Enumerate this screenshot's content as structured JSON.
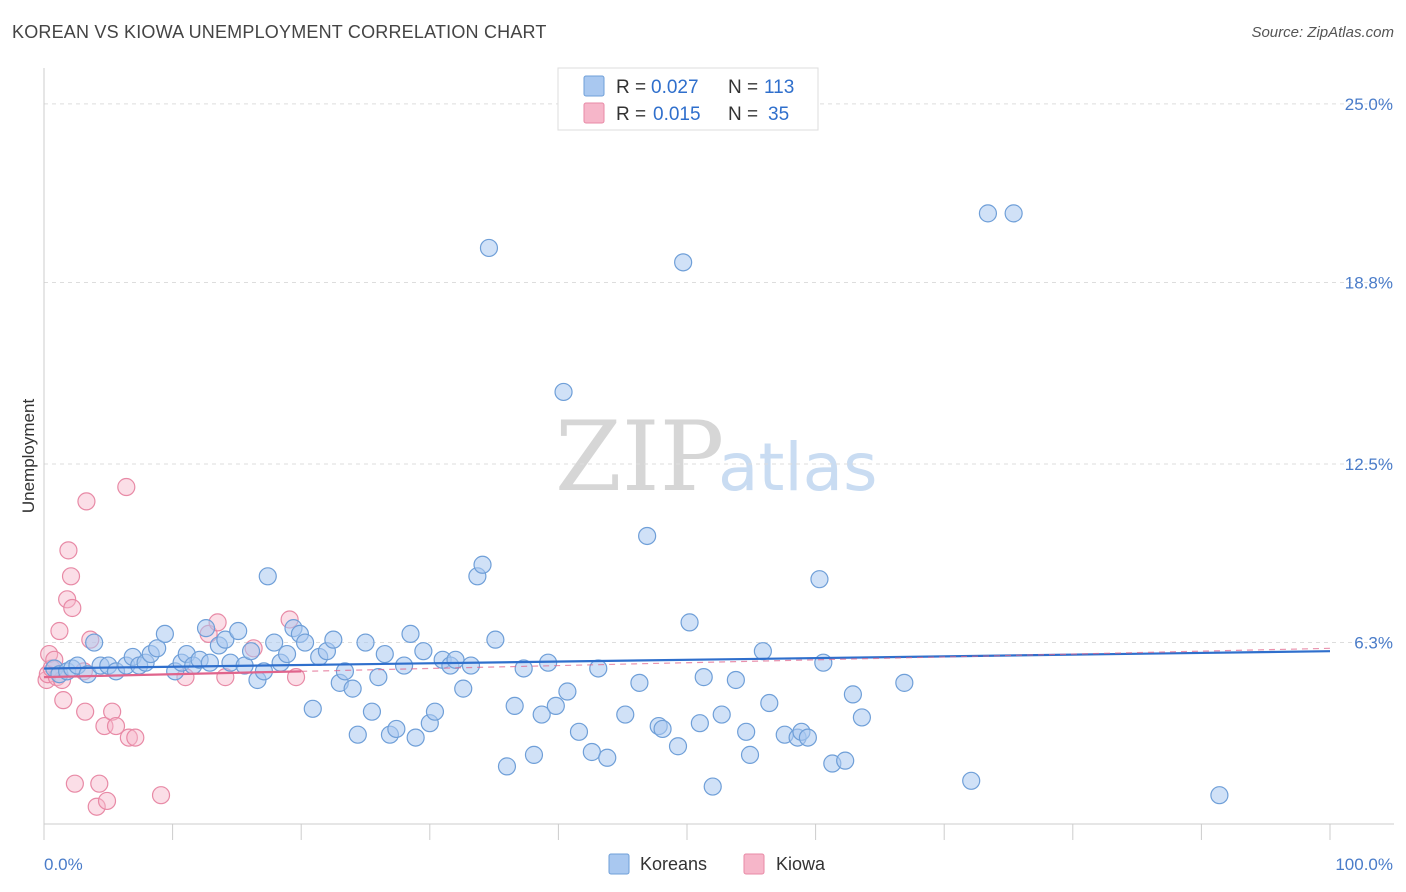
{
  "header": {
    "title": "KOREAN VS KIOWA UNEMPLOYMENT CORRELATION CHART",
    "source": "Source: ZipAtlas.com"
  },
  "watermark": {
    "zip": "ZIP",
    "atlas": "atlas"
  },
  "legend_top": [
    {
      "r_label": "R =",
      "r_value": "0.027",
      "n_label": "N =",
      "n_value": "113",
      "color": "#a9c8f0"
    },
    {
      "r_label": "R =",
      "r_value": "0.015",
      "n_label": "N =",
      "n_value": "35",
      "color": "#f6b6c9"
    }
  ],
  "legend_bottom": [
    {
      "label": "Koreans",
      "color": "#a9c8f0"
    },
    {
      "label": "Kiowa",
      "color": "#f6b6c9"
    }
  ],
  "colors": {
    "koreans_fill": "#a9c8f0",
    "koreans_stroke": "#6f9fd8",
    "koreans_line": "#2f6fcc",
    "kiowa_fill": "#f6b6c9",
    "kiowa_stroke": "#e88aa6",
    "kiowa_line": "#e0648c",
    "tick_text": "#4a7cc9",
    "grid": "#dddddd"
  },
  "chart_data": {
    "type": "scatter",
    "title": "KOREAN VS KIOWA UNEMPLOYMENT CORRELATION CHART",
    "xlabel": "",
    "ylabel": "Unemployment",
    "xlim": [
      0,
      100
    ],
    "ylim": [
      0,
      25.9
    ],
    "x_tick_labels": [
      {
        "value": 0,
        "label": "0.0%"
      },
      {
        "value": 100,
        "label": "100.0%"
      }
    ],
    "y_tick_labels": [
      {
        "value": 6.3,
        "label": "6.3%"
      },
      {
        "value": 12.5,
        "label": "12.5%"
      },
      {
        "value": 18.8,
        "label": "18.8%"
      },
      {
        "value": 25.0,
        "label": "25.0%"
      }
    ],
    "grid": true,
    "legend_placement": "top-center",
    "series": [
      {
        "name": "Koreans",
        "r": 0.027,
        "n": 113,
        "trend": {
          "x": [
            0,
            100
          ],
          "y": [
            5.4,
            6.0
          ]
        },
        "points": [
          [
            0.8,
            5.4
          ],
          [
            1.2,
            5.2
          ],
          [
            1.8,
            5.3
          ],
          [
            2.2,
            5.4
          ],
          [
            2.6,
            5.5
          ],
          [
            3.4,
            5.2
          ],
          [
            3.9,
            6.3
          ],
          [
            4.4,
            5.5
          ],
          [
            5.0,
            5.5
          ],
          [
            5.6,
            5.3
          ],
          [
            6.4,
            5.5
          ],
          [
            6.9,
            5.8
          ],
          [
            7.4,
            5.5
          ],
          [
            7.9,
            5.6
          ],
          [
            8.3,
            5.9
          ],
          [
            8.8,
            6.1
          ],
          [
            9.4,
            6.6
          ],
          [
            10.2,
            5.3
          ],
          [
            10.7,
            5.6
          ],
          [
            11.1,
            5.9
          ],
          [
            11.6,
            5.5
          ],
          [
            12.1,
            5.7
          ],
          [
            12.6,
            6.8
          ],
          [
            12.9,
            5.6
          ],
          [
            13.6,
            6.2
          ],
          [
            14.1,
            6.4
          ],
          [
            14.5,
            5.6
          ],
          [
            15.1,
            6.7
          ],
          [
            15.6,
            5.5
          ],
          [
            16.1,
            6.0
          ],
          [
            16.6,
            5.0
          ],
          [
            17.1,
            5.3
          ],
          [
            17.4,
            8.6
          ],
          [
            17.9,
            6.3
          ],
          [
            18.4,
            5.6
          ],
          [
            18.9,
            5.9
          ],
          [
            19.4,
            6.8
          ],
          [
            19.9,
            6.6
          ],
          [
            20.3,
            6.3
          ],
          [
            20.9,
            4.0
          ],
          [
            21.4,
            5.8
          ],
          [
            22.0,
            6.0
          ],
          [
            22.5,
            6.4
          ],
          [
            23.0,
            4.9
          ],
          [
            23.4,
            5.3
          ],
          [
            24.0,
            4.7
          ],
          [
            24.4,
            3.1
          ],
          [
            25.0,
            6.3
          ],
          [
            25.5,
            3.9
          ],
          [
            26.0,
            5.1
          ],
          [
            26.5,
            5.9
          ],
          [
            26.9,
            3.1
          ],
          [
            27.4,
            3.3
          ],
          [
            28.0,
            5.5
          ],
          [
            28.5,
            6.6
          ],
          [
            28.9,
            3.0
          ],
          [
            29.5,
            6.0
          ],
          [
            30.0,
            3.5
          ],
          [
            30.4,
            3.9
          ],
          [
            31.0,
            5.7
          ],
          [
            31.6,
            5.5
          ],
          [
            32.0,
            5.7
          ],
          [
            32.6,
            4.7
          ],
          [
            33.2,
            5.5
          ],
          [
            33.7,
            8.6
          ],
          [
            34.1,
            9.0
          ],
          [
            34.6,
            20.0
          ],
          [
            35.1,
            6.4
          ],
          [
            36.0,
            2.0
          ],
          [
            36.6,
            4.1
          ],
          [
            37.3,
            5.4
          ],
          [
            38.1,
            2.4
          ],
          [
            38.7,
            3.8
          ],
          [
            39.2,
            5.6
          ],
          [
            39.8,
            4.1
          ],
          [
            40.4,
            15.0
          ],
          [
            40.7,
            4.6
          ],
          [
            41.6,
            3.2
          ],
          [
            42.6,
            2.5
          ],
          [
            43.1,
            5.4
          ],
          [
            43.8,
            2.3
          ],
          [
            45.2,
            3.8
          ],
          [
            46.3,
            4.9
          ],
          [
            46.9,
            10.0
          ],
          [
            47.8,
            3.4
          ],
          [
            48.1,
            3.3
          ],
          [
            49.3,
            2.7
          ],
          [
            49.7,
            19.5
          ],
          [
            50.2,
            7.0
          ],
          [
            51.0,
            3.5
          ],
          [
            51.3,
            5.1
          ],
          [
            52.0,
            1.3
          ],
          [
            52.7,
            3.8
          ],
          [
            53.8,
            5.0
          ],
          [
            54.6,
            3.2
          ],
          [
            54.9,
            2.4
          ],
          [
            55.9,
            6.0
          ],
          [
            56.4,
            4.2
          ],
          [
            57.6,
            3.1
          ],
          [
            58.6,
            3.0
          ],
          [
            58.9,
            3.2
          ],
          [
            59.4,
            3.0
          ],
          [
            60.3,
            8.5
          ],
          [
            60.6,
            5.6
          ],
          [
            61.3,
            2.1
          ],
          [
            62.3,
            2.2
          ],
          [
            62.9,
            4.5
          ],
          [
            63.6,
            3.7
          ],
          [
            66.9,
            4.9
          ],
          [
            72.1,
            1.5
          ],
          [
            73.4,
            21.2
          ],
          [
            75.4,
            21.2
          ],
          [
            91.4,
            1.0
          ]
        ]
      },
      {
        "name": "Kiowa",
        "r": 0.015,
        "n": 35,
        "trend": {
          "x": [
            0,
            20
          ],
          "y": [
            5.1,
            5.3
          ]
        },
        "points": [
          [
            0.2,
            5.0
          ],
          [
            0.3,
            5.2
          ],
          [
            0.4,
            5.9
          ],
          [
            0.6,
            5.4
          ],
          [
            0.8,
            5.7
          ],
          [
            1.0,
            5.1
          ],
          [
            1.2,
            6.7
          ],
          [
            1.4,
            5.0
          ],
          [
            1.5,
            4.3
          ],
          [
            1.8,
            7.8
          ],
          [
            1.9,
            9.5
          ],
          [
            2.1,
            8.6
          ],
          [
            2.2,
            7.5
          ],
          [
            2.4,
            1.4
          ],
          [
            3.1,
            5.3
          ],
          [
            3.2,
            3.9
          ],
          [
            3.3,
            11.2
          ],
          [
            3.6,
            6.4
          ],
          [
            4.1,
            0.6
          ],
          [
            4.3,
            1.4
          ],
          [
            4.7,
            3.4
          ],
          [
            4.9,
            0.8
          ],
          [
            5.3,
            3.9
          ],
          [
            5.6,
            3.4
          ],
          [
            6.4,
            11.7
          ],
          [
            6.6,
            3.0
          ],
          [
            7.1,
            3.0
          ],
          [
            9.1,
            1.0
          ],
          [
            11.0,
            5.1
          ],
          [
            12.8,
            6.6
          ],
          [
            13.5,
            7.0
          ],
          [
            14.1,
            5.1
          ],
          [
            16.3,
            6.1
          ],
          [
            19.1,
            7.1
          ],
          [
            19.6,
            5.1
          ]
        ]
      }
    ]
  }
}
